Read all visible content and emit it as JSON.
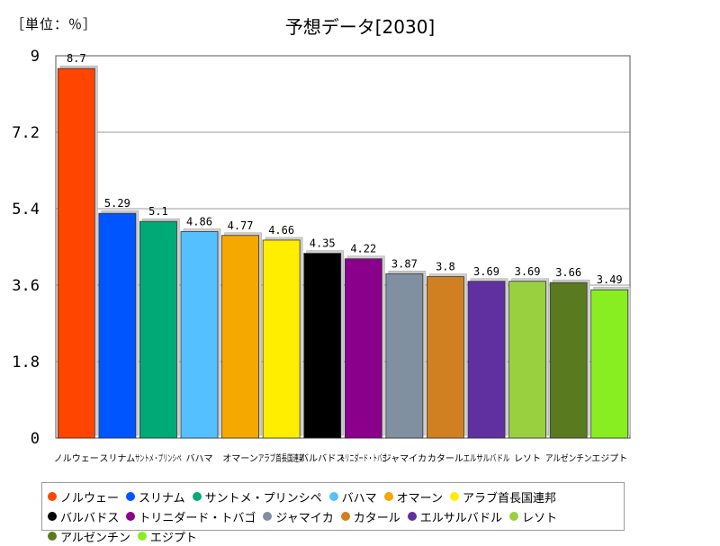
{
  "unit_label": "［単位：％］",
  "chart_data": {
    "type": "bar",
    "title": "予想データ[2030]",
    "categories": [
      "ノルウェー",
      "スリナム",
      "サントメ・プリンシペ",
      "バハマ",
      "オマーン",
      "アラブ首長国連邦",
      "バルバドス",
      "トリニダード・トバゴ",
      "ジャマイカ",
      "カタール",
      "エルサルバドル",
      "レソト",
      "アルゼンチン",
      "エジプト"
    ],
    "values": [
      8.7,
      5.29,
      5.1,
      4.86,
      4.77,
      4.66,
      4.35,
      4.22,
      3.87,
      3.8,
      3.69,
      3.69,
      3.66,
      3.49
    ],
    "data_labels": [
      "8.7",
      "5.29",
      "5.1",
      "4.86",
      "4.77",
      "4.66",
      "4.35",
      "4.22",
      "3.87",
      "3.8",
      "3.69",
      "3.69",
      "3.66",
      "3.49"
    ],
    "colors": [
      "#ff4500",
      "#0055ff",
      "#00aa77",
      "#55c0ff",
      "#f5a800",
      "#ffee00",
      "#000000",
      "#8b008b",
      "#8090a0",
      "#d08020",
      "#6030a0",
      "#99d040",
      "#5a7a20",
      "#88ee22"
    ],
    "yticks": [
      "9",
      "7.2",
      "5.4",
      "3.6",
      "1.8",
      "0"
    ],
    "ylim": [
      0,
      9
    ],
    "xlabel": "",
    "ylabel": "",
    "grid": true,
    "legend_position": "bottom"
  }
}
